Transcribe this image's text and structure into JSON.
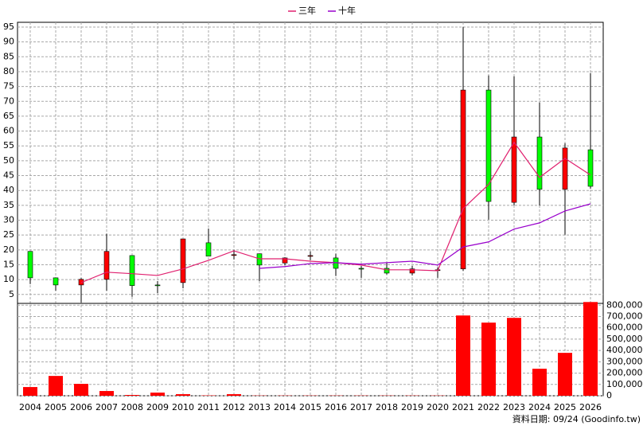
{
  "chart_data": [
    {
      "type": "candlestick",
      "open": [
        19.5,
        10.6,
        8.2,
        10.1,
        18.1,
        8.2,
        9.0,
        22.4,
        18.4,
        18.7,
        15.6,
        18.1,
        17.3,
        13.8,
        13.8,
        12.2,
        13.3,
        13.6,
        73.8,
        36.0,
        58.0,
        40.4,
        53.7
      ],
      "high": [
        19.5,
        10.6,
        10.5,
        25.4,
        18.1,
        9.5,
        23.7,
        27.2,
        20.0,
        18.7,
        17.5,
        19.5,
        18.7,
        14.6,
        15.7,
        14.6,
        14.1,
        95.0,
        78.7,
        78.4,
        69.6,
        55.9,
        79.5
      ],
      "low": [
        8.5,
        6.3,
        2.3,
        6.3,
        4.2,
        5.5,
        7.1,
        17.9,
        16.8,
        9.5,
        14.9,
        16.5,
        11.2,
        10.6,
        11.7,
        11.4,
        10.6,
        13.0,
        30.2,
        35.0,
        35.0,
        25.1,
        40.6
      ],
      "close": [
        10.6,
        8.2,
        10.1,
        19.5,
        8.0,
        8.0,
        23.7,
        17.9,
        18.4,
        14.9,
        17.3,
        18.1,
        13.8,
        13.6,
        12.2,
        13.6,
        13.3,
        73.8,
        36.3,
        58.0,
        40.4,
        54.3,
        41.4
      ],
      "up_color": "#ff0000",
      "down_color": "#00ff00",
      "candle_edge": "#000000",
      "series": [
        {
          "name": "三年",
          "color": "#e0206f",
          "values": [
            null,
            null,
            9.0,
            12.5,
            12.0,
            11.4,
            13.6,
            16.5,
            19.7,
            17.0,
            17.0,
            16.2,
            15.7,
            14.9,
            13.3,
            13.3,
            13.0,
            33.9,
            42.0,
            56.2,
            44.4,
            50.8,
            45.2
          ]
        },
        {
          "name": "十年",
          "color": "#9900cc",
          "values": [
            null,
            null,
            null,
            null,
            null,
            null,
            null,
            null,
            null,
            13.8,
            14.4,
            15.4,
            15.7,
            15.2,
            15.7,
            16.2,
            14.9,
            21.0,
            22.7,
            27.0,
            29.1,
            33.1,
            35.5
          ]
        }
      ],
      "ylim": [
        2,
        96.6
      ],
      "yticks": [
        5,
        10,
        15,
        20,
        25,
        30,
        35,
        40,
        45,
        50,
        55,
        60,
        65,
        70,
        75,
        80,
        85,
        90,
        95
      ],
      "grid": true,
      "legend": "top"
    },
    {
      "type": "bar",
      "categories": [
        "2004",
        "2005",
        "2006",
        "2007",
        "2008",
        "2009",
        "2010",
        "2011",
        "2012",
        "2013",
        "2014",
        "2015",
        "2016",
        "2017",
        "2018",
        "2019",
        "2020",
        "2021",
        "2022",
        "2023",
        "2024",
        "2025",
        "2026"
      ],
      "values": [
        77000,
        175000,
        105000,
        42000,
        7000,
        28000,
        14000,
        3000,
        14000,
        2000,
        2000,
        2000,
        2000,
        2000,
        2000,
        2000,
        2000,
        709000,
        646000,
        688000,
        239000,
        379000,
        828000
      ],
      "color": "#ff0000",
      "ylim": [
        0,
        830000
      ],
      "yticks": [
        0,
        {
          "value": 100000,
          "label": "100,000"
        },
        {
          "value": 200000,
          "label": "200,000"
        },
        {
          "value": 300000,
          "label": "300,000"
        },
        {
          "value": 400000,
          "label": "400,000"
        },
        {
          "value": 500000,
          "label": "500,000"
        },
        {
          "value": 600000,
          "label": "600,000"
        },
        {
          "value": 700000,
          "label": "700,000"
        },
        {
          "value": 800000,
          "label": "800,000"
        }
      ],
      "grid": true,
      "y_axis_side": "right"
    }
  ],
  "footnote": "資料日期: 09/24 (Goodinfo.tw)"
}
